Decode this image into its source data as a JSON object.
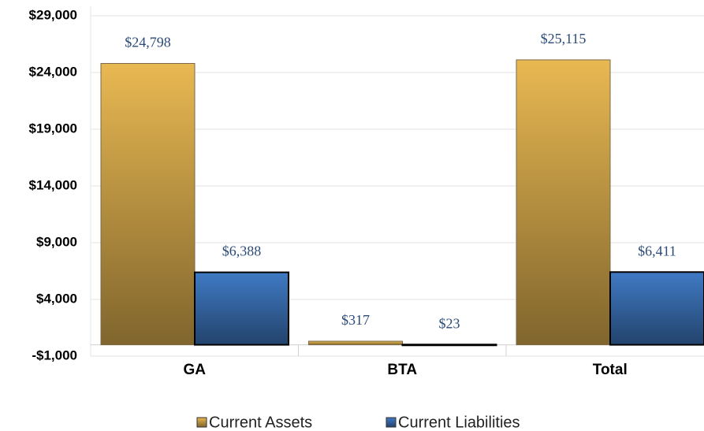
{
  "chart_data": {
    "type": "bar",
    "categories": [
      "GA",
      "BTA",
      "Total"
    ],
    "series": [
      {
        "name": "Current Assets",
        "color": "#e8b852",
        "values": [
          24798,
          317,
          25115
        ],
        "value_labels": [
          "$24,798",
          "$317",
          "$25,115"
        ]
      },
      {
        "name": "Current Liabilities",
        "color": "#3f7ac4",
        "values": [
          6388,
          23,
          6411
        ],
        "value_labels": [
          "$6,388",
          "$23",
          "$6,411"
        ]
      }
    ],
    "ylim": [
      -1000,
      29000
    ],
    "yticks": [
      {
        "value": -1000,
        "label": "-$1,000"
      },
      {
        "value": 4000,
        "label": "$4,000"
      },
      {
        "value": 9000,
        "label": "$9,000"
      },
      {
        "value": 14000,
        "label": "$14,000"
      },
      {
        "value": 19000,
        "label": "$19,000"
      },
      {
        "value": 24000,
        "label": "$24,000"
      },
      {
        "value": 29000,
        "label": "$29,000"
      }
    ],
    "grid": true,
    "legend": "bottom"
  }
}
